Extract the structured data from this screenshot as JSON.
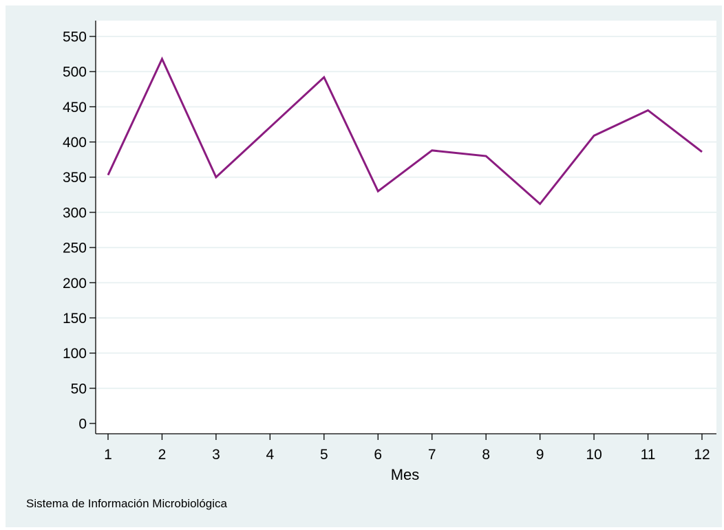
{
  "chart_data": {
    "type": "line",
    "x": [
      1,
      2,
      3,
      4,
      5,
      6,
      7,
      8,
      9,
      10,
      11,
      12
    ],
    "series": [
      {
        "values": [
          353,
          518,
          350,
          421,
          492,
          330,
          388,
          380,
          312,
          409,
          445,
          386
        ]
      }
    ],
    "xlabel": "Mes",
    "ylabel": "",
    "title": "",
    "xlim": [
      1,
      12
    ],
    "ylim": [
      0,
      550
    ],
    "x_ticks": [
      "1",
      "2",
      "3",
      "4",
      "5",
      "6",
      "7",
      "8",
      "9",
      "10",
      "11",
      "12"
    ],
    "y_ticks": [
      "0",
      "50",
      "100",
      "150",
      "200",
      "250",
      "300",
      "350",
      "400",
      "450",
      "500",
      "550"
    ],
    "grid": true,
    "note": "Sistema de Información Microbiológica"
  },
  "colors": {
    "background": "#eaf2f3",
    "plot_area": "#ffffff",
    "line": "#8b1c80",
    "grid": "#eaf2f3",
    "axis": "#000000"
  }
}
